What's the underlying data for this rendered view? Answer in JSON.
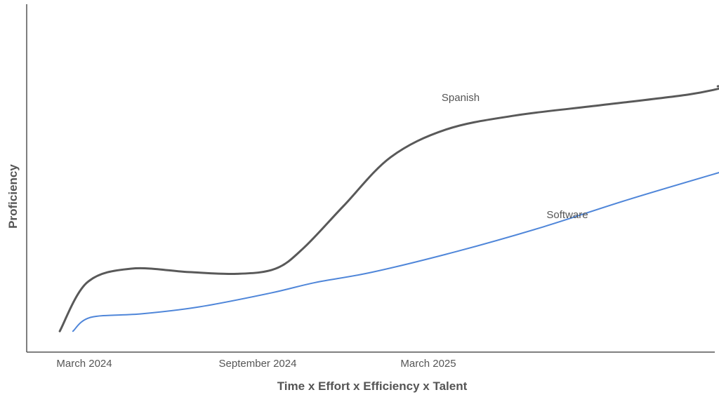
{
  "chart_data": {
    "type": "line",
    "xlabel": "Time x Effort x Efficiency x Talent",
    "ylabel": "Proficiency",
    "x_ticks": [
      "March 2024",
      "September 2024",
      "March 2025"
    ],
    "grid": false,
    "legend": "none",
    "series_labels_inline": true,
    "series": [
      {
        "name": "Spanish",
        "color": "#595959",
        "points": [
          [
            "2024-02-04",
            0.06
          ],
          [
            "2024-03-04",
            0.2
          ],
          [
            "2024-04-20",
            0.24
          ],
          [
            "2024-06-20",
            0.23
          ],
          [
            "2024-08-10",
            0.225
          ],
          [
            "2024-09-20",
            0.24
          ],
          [
            "2024-10-20",
            0.3
          ],
          [
            "2024-12-01",
            0.42
          ],
          [
            "2025-01-20",
            0.56
          ],
          [
            "2025-03-20",
            0.64
          ],
          [
            "2025-06-01",
            0.68
          ],
          [
            "2025-09-01",
            0.71
          ],
          [
            "2025-12-01",
            0.74
          ],
          [
            "2026-01-08",
            0.76
          ]
        ]
      },
      {
        "name": "Software",
        "color": "#4f86d9",
        "points": [
          [
            "2024-02-18",
            0.06
          ],
          [
            "2024-03-08",
            0.1
          ],
          [
            "2024-05-01",
            0.11
          ],
          [
            "2024-07-01",
            0.13
          ],
          [
            "2024-09-15",
            0.17
          ],
          [
            "2024-11-01",
            0.2
          ],
          [
            "2025-01-01",
            0.23
          ],
          [
            "2025-04-01",
            0.29
          ],
          [
            "2025-07-01",
            0.36
          ],
          [
            "2025-10-01",
            0.44
          ],
          [
            "2026-01-21",
            0.53
          ]
        ]
      }
    ]
  }
}
